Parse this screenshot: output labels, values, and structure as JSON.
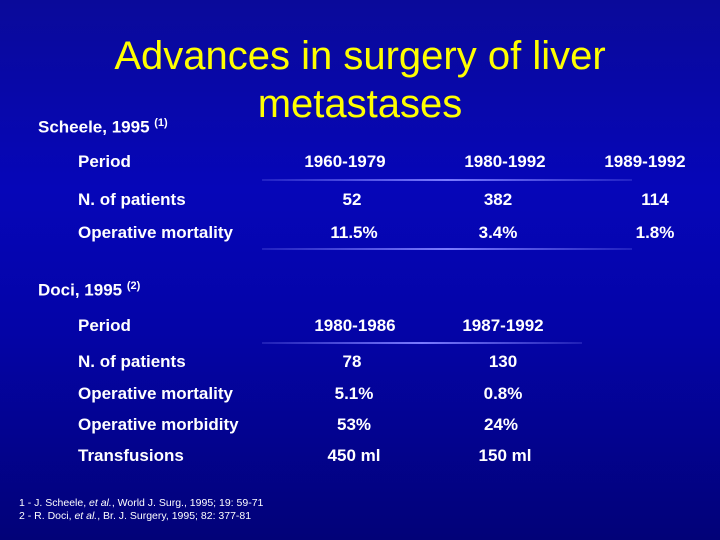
{
  "title": {
    "line1": "Advances in surgery of liver",
    "line2": "metastases"
  },
  "study1": {
    "author": "Scheele, 1995",
    "ref": "(1)",
    "period_label": "Period",
    "periods": [
      "1960-1979",
      "1980-1992",
      "1989-1992"
    ],
    "rows": [
      {
        "label": "N. of patients",
        "values": [
          "52",
          "382",
          "114"
        ]
      },
      {
        "label": "Operative mortality",
        "values": [
          "11.5%",
          "3.4%",
          "1.8%"
        ]
      }
    ]
  },
  "study2": {
    "author": "Doci, 1995",
    "ref": "(2)",
    "period_label": "Period",
    "periods": [
      "1980-1986",
      "1987-1992"
    ],
    "rows": [
      {
        "label": "N. of patients",
        "values": [
          "78",
          "130"
        ]
      },
      {
        "label": "Operative mortality",
        "values": [
          "5.1%",
          "0.8%"
        ]
      },
      {
        "label": "Operative morbidity",
        "values": [
          "53%",
          "24%"
        ]
      },
      {
        "label": "Transfusions",
        "values": [
          "450 ml",
          "150 ml"
        ]
      }
    ]
  },
  "references": {
    "r1_pre": "1 - J. Scheele, ",
    "r1_etal": "et al.",
    "r1_post": ", World J. Surg., 1995; 19: 59-71",
    "r2_pre": "2 - R. Doci, ",
    "r2_etal": "et al.",
    "r2_post": ", Br. J. Surgery, 1995; 82: 377-81"
  },
  "colors": {
    "background": "#0606b8",
    "title": "#ffff00",
    "text": "#ffffff",
    "rule": "#7a7aff"
  }
}
